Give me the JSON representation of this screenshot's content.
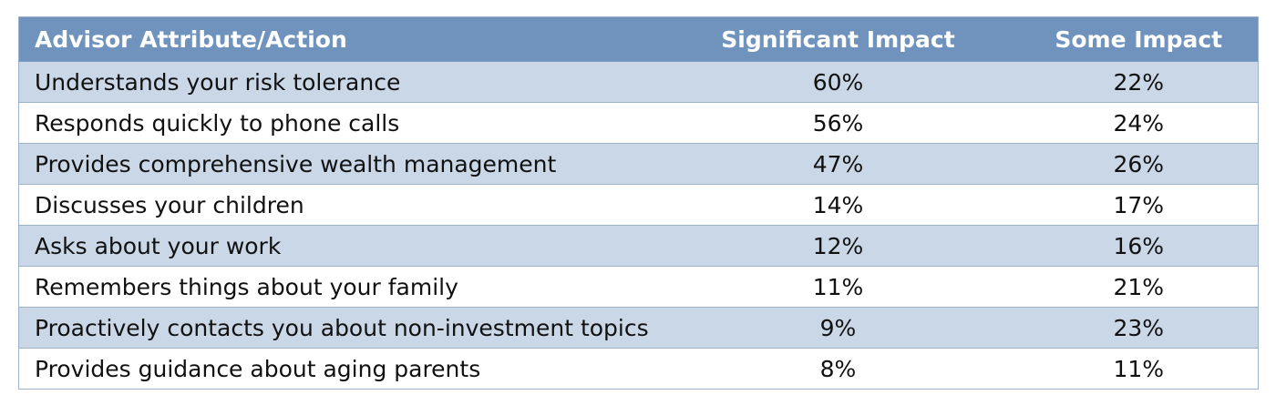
{
  "chart_data": {
    "type": "table",
    "columns": [
      "Advisor Attribute/Action",
      "Significant Impact",
      "Some Impact"
    ],
    "rows": [
      [
        "Understands your risk tolerance",
        "60%",
        "22%"
      ],
      [
        "Responds quickly to phone calls",
        "56%",
        "24%"
      ],
      [
        "Provides comprehensive wealth management",
        "47%",
        "26%"
      ],
      [
        "Discusses your children",
        "14%",
        "17%"
      ],
      [
        "Asks about your work",
        "12%",
        "16%"
      ],
      [
        "Remembers things about your family",
        "11%",
        "21%"
      ],
      [
        "Proactively contacts you about non-investment topics",
        "9%",
        "23%"
      ],
      [
        "Provides guidance about aging parents",
        "8%",
        "11%"
      ]
    ],
    "colors": {
      "header_background": "#6f93bc",
      "header_text": "#ffffff",
      "shaded_row": "#c9d7e7",
      "plain_row": "#ffffff"
    }
  }
}
